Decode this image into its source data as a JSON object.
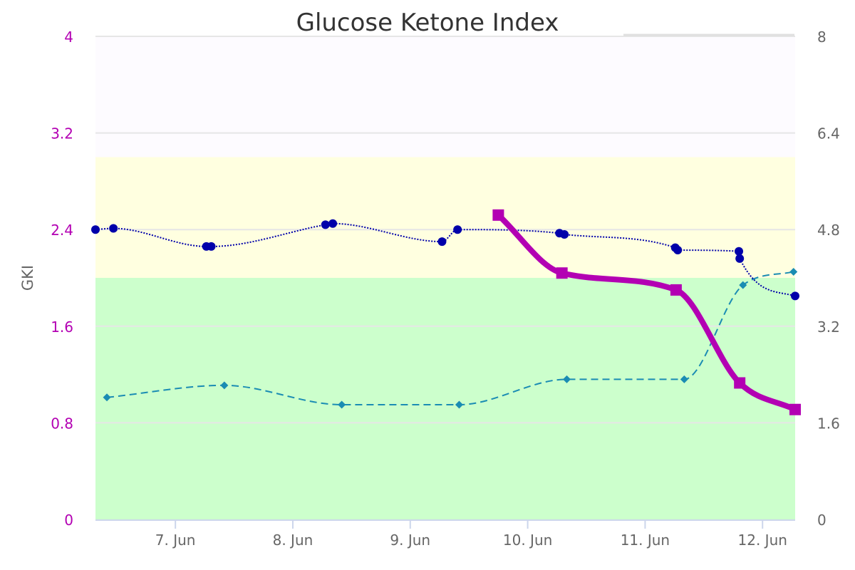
{
  "chart_data": {
    "type": "line",
    "title": "Glucose Ketone Index",
    "x_type": "datetime",
    "x_range": [
      "2024-06-06T07:40",
      "2024-06-12T06:40"
    ],
    "x_ticks": [
      "7. Jun",
      "8. Jun",
      "9. Jun",
      "10. Jun",
      "11. Jun",
      "12. Jun"
    ],
    "y_left": {
      "label": "GKI",
      "range": [
        0,
        4
      ],
      "ticks": [
        "0",
        "0.8",
        "1.6",
        "2.4",
        "3.2",
        "4"
      ],
      "tick_color": "#b300b3"
    },
    "y_right": {
      "label": "",
      "range": [
        0,
        8
      ],
      "ticks": [
        "0",
        "1.6",
        "3.2",
        "4.8",
        "6.4",
        "8"
      ],
      "tick_color": "#666666"
    },
    "bands": [
      {
        "axis": "left",
        "from": 0,
        "to": 2.0,
        "color": "#ccffcc"
      },
      {
        "axis": "left",
        "from": 2.0,
        "to": 3.0,
        "color": "#ffffe0"
      },
      {
        "axis": "left",
        "from": 3.0,
        "to": 4.0,
        "color": "#fdfbff"
      }
    ],
    "grid": true,
    "legend": "none",
    "series": [
      {
        "axis": "left",
        "color": "#b300b3",
        "style": "thick-solid",
        "marker": "square",
        "x": [
          "2024-06-09T18:00",
          "2024-06-10T07:00",
          "2024-06-11T06:20",
          "2024-06-11T19:20",
          "2024-06-12T06:40"
        ],
        "y": [
          2.52,
          2.04,
          1.9,
          1.13,
          0.91
        ]
      },
      {
        "axis": "right",
        "color": "#0000aa",
        "style": "dotted",
        "marker": "circle",
        "x": [
          "2024-06-06T07:40",
          "2024-06-06T11:20",
          "2024-06-07T06:20",
          "2024-06-07T07:20",
          "2024-06-08T06:40",
          "2024-06-08T08:10",
          "2024-06-09T06:30",
          "2024-06-09T09:40",
          "2024-06-10T06:30",
          "2024-06-10T07:30",
          "2024-06-11T06:10",
          "2024-06-11T06:40",
          "2024-06-11T19:10",
          "2024-06-11T19:20",
          "2024-06-12T06:40"
        ],
        "y": [
          4.8,
          4.82,
          4.52,
          4.52,
          4.88,
          4.9,
          4.6,
          4.8,
          4.74,
          4.72,
          4.5,
          4.46,
          4.44,
          4.32,
          3.7
        ]
      },
      {
        "axis": "right",
        "color": "#1a8cb3",
        "style": "dashed",
        "marker": "diamond",
        "x": [
          "2024-06-06T10:00",
          "2024-06-07T10:00",
          "2024-06-08T10:00",
          "2024-06-09T10:00",
          "2024-06-10T08:00",
          "2024-06-11T08:00",
          "2024-06-11T20:00",
          "2024-06-12T06:20"
        ],
        "y": [
          2.02,
          2.22,
          1.9,
          1.9,
          2.32,
          2.32,
          3.88,
          4.1
        ]
      }
    ]
  }
}
